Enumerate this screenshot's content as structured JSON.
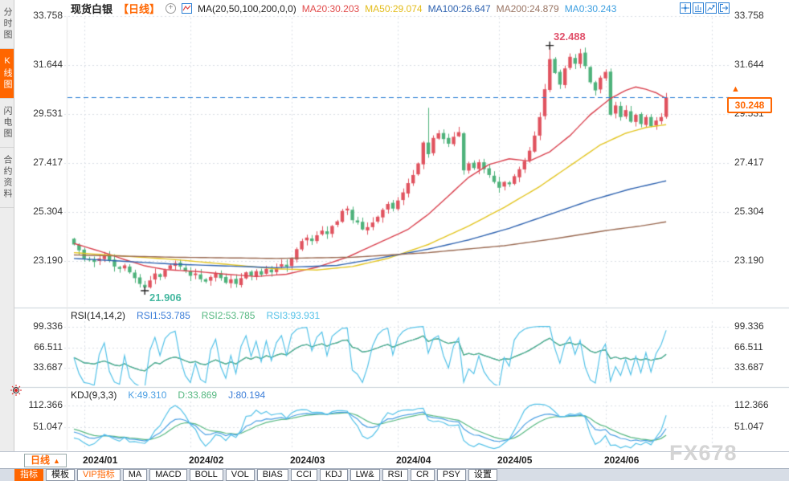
{
  "header": {
    "symbol": "现货白银",
    "period": "【日线】",
    "add_icon_char": "+",
    "ma_settings": "MA(20,50,100,200,0,0)",
    "ma_values": [
      {
        "label": "MA20:30.203",
        "color": "#e14b4b"
      },
      {
        "label": "MA50:29.074",
        "color": "#e3bc1a"
      },
      {
        "label": "MA100:26.647",
        "color": "#2f63b0"
      },
      {
        "label": "MA200:24.879",
        "color": "#9a7564"
      },
      {
        "label": "MA0:30.243",
        "color": "#3d9fe0"
      }
    ]
  },
  "sidebar": {
    "items": [
      {
        "label": "分时图",
        "active": false
      },
      {
        "label": "K线图",
        "active": true
      },
      {
        "label": "闪电图",
        "active": false
      },
      {
        "label": "合约资料",
        "active": false
      }
    ]
  },
  "main_pane": {
    "y_tick_labels": [
      "33.758",
      "31.644",
      "29.531",
      "27.417",
      "25.304",
      "23.190"
    ],
    "high_annotation": "32.488",
    "low_annotation": "21.906",
    "price_tag": "30.248",
    "price_tag_arrow": "▲"
  },
  "rsi_pane": {
    "title": "RSI(14,14,2)",
    "values": [
      {
        "label": "RSI1:53.785",
        "color": "#3b7dd8"
      },
      {
        "label": "RSI2:53.785",
        "color": "#56b881"
      },
      {
        "label": "RSI3:93.931",
        "color": "#54c2e8"
      }
    ],
    "y_tick_labels": [
      "99.336",
      "66.511",
      "33.687"
    ]
  },
  "kdj_pane": {
    "title": "KDJ(9,3,3)",
    "values": [
      {
        "label": "K:49.310",
        "color": "#4a9fe3"
      },
      {
        "label": "D:33.869",
        "color": "#56b881"
      },
      {
        "label": "J:80.194",
        "color": "#3b7dd8"
      }
    ],
    "y_tick_labels": [
      "112.366",
      "51.047"
    ]
  },
  "time_axis": {
    "period_button": "日线",
    "period_caret": "▲",
    "months": [
      "2024/01",
      "2024/02",
      "2024/03",
      "2024/04",
      "2024/05",
      "2024/06"
    ]
  },
  "bottom_menu": {
    "items": [
      {
        "label": "指标",
        "state": "active"
      },
      {
        "label": "模板",
        "state": "normal"
      },
      {
        "label": "VIP指标",
        "state": "vip"
      },
      {
        "label": "MA",
        "state": "normal"
      },
      {
        "label": "MACD",
        "state": "normal"
      },
      {
        "label": "BOLL",
        "state": "normal"
      },
      {
        "label": "VOL",
        "state": "normal"
      },
      {
        "label": "BIAS",
        "state": "normal"
      },
      {
        "label": "CCI",
        "state": "normal"
      },
      {
        "label": "KDJ",
        "state": "normal"
      },
      {
        "label": "LW&",
        "state": "normal"
      },
      {
        "label": "RSI",
        "state": "normal"
      },
      {
        "label": "CR",
        "state": "normal"
      },
      {
        "label": "PSY",
        "state": "normal"
      },
      {
        "label": "设置",
        "state": "normal"
      }
    ]
  },
  "watermark": "FX678",
  "chart_data": {
    "type": "candlestick",
    "instrument": "现货白银 (spot silver), daily K-line, Jan–mid Jun 2024",
    "open_first": 24.15,
    "closes": [
      23.9,
      23.65,
      23.3,
      23.25,
      23.15,
      23.3,
      23.4,
      23.2,
      22.95,
      22.85,
      23.0,
      22.7,
      22.45,
      22.2,
      22.05,
      22.35,
      22.65,
      22.5,
      22.8,
      23.0,
      23.1,
      22.95,
      22.75,
      22.55,
      22.65,
      22.4,
      22.3,
      22.5,
      22.65,
      22.45,
      22.25,
      22.4,
      22.2,
      22.45,
      22.7,
      22.55,
      22.75,
      22.6,
      22.85,
      22.7,
      22.9,
      23.05,
      22.95,
      23.3,
      23.7,
      24.05,
      24.2,
      24.05,
      24.3,
      24.5,
      24.35,
      24.7,
      24.9,
      25.35,
      25.45,
      24.95,
      24.85,
      24.55,
      24.65,
      24.85,
      25.1,
      25.4,
      25.65,
      25.45,
      25.8,
      26.15,
      26.55,
      26.9,
      27.4,
      28.3,
      27.8,
      28.5,
      28.7,
      28.45,
      28.25,
      28.55,
      28.75,
      27.1,
      27.4,
      27.2,
      27.45,
      27.15,
      26.9,
      26.6,
      26.35,
      26.6,
      26.5,
      26.85,
      27.15,
      27.5,
      27.95,
      28.6,
      29.4,
      30.6,
      31.9,
      31.3,
      30.8,
      31.5,
      32.0,
      31.7,
      32.15,
      31.6,
      30.9,
      30.55,
      31.1,
      31.35,
      29.5,
      29.9,
      29.4,
      29.7,
      29.2,
      29.5,
      29.1,
      29.4,
      29.0,
      29.25,
      29.4,
      30.248
    ],
    "markers": {
      "high": {
        "index": 94,
        "price": 32.488
      },
      "low": {
        "index": 14,
        "price": 21.906
      },
      "spike_high": {
        "index": 70,
        "price": 29.8
      }
    },
    "current_price": 30.248,
    "main": {
      "y_ticks": [
        33.758,
        31.644,
        29.531,
        27.417,
        25.304,
        23.19
      ]
    },
    "x_axis": {
      "month_labels": [
        "2024/01",
        "2024/02",
        "2024/03",
        "2024/04",
        "2024/05",
        "2024/06"
      ],
      "month_day_index": [
        2,
        23,
        43,
        64,
        84,
        105,
        126
      ]
    },
    "ma_lines": [
      {
        "name": "MA20",
        "color": "#d9414e",
        "points": [
          [
            0,
            23.95
          ],
          [
            6,
            23.55
          ],
          [
            10,
            23.25
          ],
          [
            14,
            22.98
          ],
          [
            18,
            22.82
          ],
          [
            24,
            22.74
          ],
          [
            30,
            22.62
          ],
          [
            36,
            22.52
          ],
          [
            42,
            22.62
          ],
          [
            48,
            22.92
          ],
          [
            54,
            23.35
          ],
          [
            60,
            23.95
          ],
          [
            66,
            24.55
          ],
          [
            70,
            25.2
          ],
          [
            74,
            26.0
          ],
          [
            78,
            26.8
          ],
          [
            82,
            27.35
          ],
          [
            86,
            27.6
          ],
          [
            90,
            27.5
          ],
          [
            94,
            27.9
          ],
          [
            98,
            28.6
          ],
          [
            102,
            29.5
          ],
          [
            106,
            30.2
          ],
          [
            109,
            30.55
          ],
          [
            111,
            30.7
          ],
          [
            113,
            30.6
          ],
          [
            115,
            30.45
          ],
          [
            117,
            30.203
          ]
        ]
      },
      {
        "name": "MA50",
        "color": "#e3c522",
        "points": [
          [
            0,
            23.55
          ],
          [
            10,
            23.4
          ],
          [
            20,
            23.25
          ],
          [
            30,
            23.05
          ],
          [
            40,
            22.85
          ],
          [
            48,
            22.8
          ],
          [
            55,
            22.95
          ],
          [
            62,
            23.3
          ],
          [
            70,
            23.9
          ],
          [
            78,
            24.7
          ],
          [
            85,
            25.5
          ],
          [
            92,
            26.4
          ],
          [
            98,
            27.3
          ],
          [
            104,
            28.2
          ],
          [
            109,
            28.7
          ],
          [
            113,
            28.95
          ],
          [
            117,
            29.074
          ]
        ]
      },
      {
        "name": "MA100",
        "color": "#2f63b0",
        "points": [
          [
            0,
            23.3
          ],
          [
            20,
            23.05
          ],
          [
            40,
            22.9
          ],
          [
            52,
            23.0
          ],
          [
            60,
            23.3
          ],
          [
            70,
            23.7
          ],
          [
            78,
            24.1
          ],
          [
            86,
            24.6
          ],
          [
            94,
            25.2
          ],
          [
            102,
            25.8
          ],
          [
            110,
            26.3
          ],
          [
            117,
            26.647
          ]
        ]
      },
      {
        "name": "MA200",
        "color": "#9a6a52",
        "points": [
          [
            0,
            23.45
          ],
          [
            20,
            23.35
          ],
          [
            40,
            23.3
          ],
          [
            55,
            23.35
          ],
          [
            70,
            23.55
          ],
          [
            85,
            23.85
          ],
          [
            95,
            24.15
          ],
          [
            105,
            24.5
          ],
          [
            112,
            24.7
          ],
          [
            117,
            24.879
          ]
        ]
      }
    ],
    "rsi": {
      "periods": [
        14,
        14,
        2
      ],
      "y_ticks": [
        99.336,
        66.511,
        33.687
      ],
      "display_values": {
        "RSI1": 53.785,
        "RSI2": 53.785,
        "RSI3": 93.931
      },
      "colors": [
        "#3b7dd8",
        "#56b881",
        "#54c2e8"
      ]
    },
    "kdj": {
      "periods": [
        9,
        3,
        3
      ],
      "y_ticks": [
        112.366,
        51.047
      ],
      "display_values": {
        "K": 49.31,
        "D": 33.869,
        "J": 80.194
      },
      "colors": {
        "k": "#4a9fe3",
        "d": "#56b881",
        "j": "#54c2e8"
      }
    },
    "colors": {
      "up": "#e0535f",
      "down": "#4eb27b",
      "grid": "#d9dee4",
      "current_line": "#2b7fd4",
      "marker": "#222",
      "high_label": "#e0506a",
      "low_label": "#45b8a0"
    }
  }
}
